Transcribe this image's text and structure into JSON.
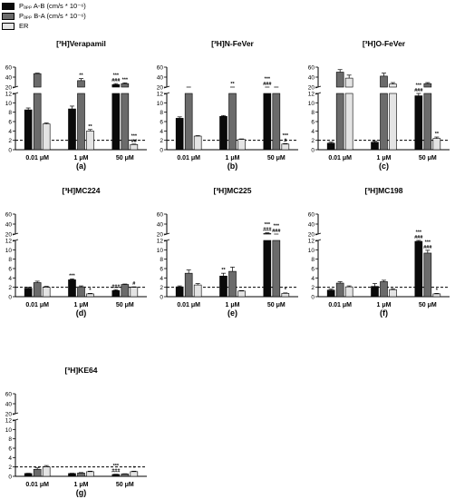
{
  "colors": {
    "ab": "#0a0a0a",
    "ba": "#6b6b6b",
    "er": "#e4e4e4"
  },
  "legend": [
    {
      "label": "Pₐₚₚ A-B (cm/s * 10⁻⁶)",
      "color": "#0a0a0a"
    },
    {
      "label": "Pₐₚₚ B-A (cm/s * 10⁻⁶)",
      "color": "#6b6b6b"
    },
    {
      "label": "ER",
      "color": "#e4e4e4"
    }
  ],
  "chart_data": [
    {
      "type": "bar",
      "title": "[³H]Verapamil",
      "letter": "(a)",
      "categories": [
        "0.01 μM",
        "1 μM",
        "50 μM"
      ],
      "series": [
        {
          "name": "A-B",
          "values": [
            8.5,
            8.7,
            25
          ],
          "errors": [
            0.4,
            0.6,
            2
          ]
        },
        {
          "name": "B-A",
          "values": [
            47,
            33,
            27
          ],
          "errors": [
            1,
            4,
            1.5
          ]
        },
        {
          "name": "ER",
          "values": [
            5.5,
            4.0,
            1.1
          ],
          "errors": [
            0.2,
            0.3,
            0.1
          ]
        }
      ],
      "reference_line": 2,
      "y_ticks_lower": [
        0,
        2,
        4,
        6,
        8,
        10,
        12
      ],
      "y_ticks_upper": [
        20,
        40,
        60
      ],
      "annotations": [
        {
          "cat": 1,
          "series": 1,
          "text": [
            "**"
          ]
        },
        {
          "cat": 1,
          "series": 2,
          "text": [
            "**"
          ]
        },
        {
          "cat": 2,
          "series": 0,
          "text": [
            "***",
            "###"
          ]
        },
        {
          "cat": 2,
          "series": 1,
          "text": [
            "***"
          ]
        },
        {
          "cat": 2,
          "series": 2,
          "text": [
            "***",
            "##"
          ]
        }
      ]
    },
    {
      "type": "bar",
      "title": "[³H]N-FeVer",
      "letter": "(b)",
      "categories": [
        "0.01 μM",
        "1 μM",
        "50 μM"
      ],
      "series": [
        {
          "name": "A-B",
          "values": [
            6.7,
            7.1,
            17
          ],
          "errors": [
            0.3,
            0.2,
            1
          ]
        },
        {
          "name": "B-A",
          "values": [
            19,
            16,
            17
          ],
          "errors": [
            1,
            1,
            1
          ]
        },
        {
          "name": "ER",
          "values": [
            2.9,
            2.2,
            1.2
          ],
          "errors": [
            0.1,
            0.1,
            0.1
          ]
        }
      ],
      "reference_line": 2,
      "y_ticks_lower": [
        0,
        2,
        4,
        6,
        8,
        10,
        12
      ],
      "y_ticks_upper": [
        20,
        40,
        60
      ],
      "annotations": [
        {
          "cat": 1,
          "series": 1,
          "text": [
            "**"
          ]
        },
        {
          "cat": 2,
          "series": 0,
          "text": [
            "***",
            "###"
          ]
        },
        {
          "cat": 2,
          "series": 2,
          "text": [
            "***",
            "#"
          ]
        }
      ]
    },
    {
      "type": "bar",
      "title": "[³H]O-FeVer",
      "letter": "(c)",
      "categories": [
        "0.01 μM",
        "1 μM",
        "50 μM"
      ],
      "series": [
        {
          "name": "A-B",
          "values": [
            1.4,
            1.6,
            11.5
          ],
          "errors": [
            0.2,
            0.2,
            0.5
          ]
        },
        {
          "name": "B-A",
          "values": [
            50,
            42,
            27
          ],
          "errors": [
            5,
            6,
            2
          ]
        },
        {
          "name": "ER",
          "values": [
            38,
            26,
            2.4
          ],
          "errors": [
            6,
            3,
            0.3
          ]
        }
      ],
      "reference_line": 2,
      "y_ticks_lower": [
        0,
        2,
        4,
        6,
        8,
        10,
        12
      ],
      "y_ticks_upper": [
        20,
        40,
        60
      ],
      "annotations": [
        {
          "cat": 2,
          "series": 0,
          "text": [
            "***",
            "###"
          ]
        },
        {
          "cat": 2,
          "series": 2,
          "text": [
            "**"
          ]
        }
      ]
    },
    {
      "type": "bar",
      "title": "[³H]MC224",
      "letter": "(d)",
      "categories": [
        "0.01 μM",
        "1 μM",
        "50 μM"
      ],
      "series": [
        {
          "name": "A-B",
          "values": [
            1.8,
            3.6,
            1.3
          ],
          "errors": [
            0.2,
            0.2,
            0.2
          ]
        },
        {
          "name": "B-A",
          "values": [
            3.0,
            2.1,
            2.6
          ],
          "errors": [
            0.3,
            0.2,
            0.1
          ]
        },
        {
          "name": "ER",
          "values": [
            2.0,
            0.6,
            2.0
          ],
          "errors": [
            0.2,
            0.1,
            0.1
          ]
        }
      ],
      "reference_line": 2,
      "y_ticks_lower": [
        0,
        2,
        4,
        6,
        8,
        10,
        12
      ],
      "y_ticks_upper": [
        20,
        40,
        60
      ],
      "annotations": [
        {
          "cat": 1,
          "series": 0,
          "text": [
            "***"
          ]
        },
        {
          "cat": 1,
          "series": 2,
          "text": [
            "*"
          ]
        },
        {
          "cat": 2,
          "series": 0,
          "text": [
            "###"
          ]
        },
        {
          "cat": 2,
          "series": 2,
          "text": [
            "#"
          ]
        }
      ]
    },
    {
      "type": "bar",
      "title": "[³H]MC225",
      "letter": "(e)",
      "categories": [
        "0.01 μM",
        "1 μM",
        "50 μM"
      ],
      "series": [
        {
          "name": "A-B",
          "values": [
            2.1,
            4.4,
            21
          ],
          "errors": [
            0.2,
            0.6,
            1.5
          ]
        },
        {
          "name": "B-A",
          "values": [
            5.0,
            5.4,
            15
          ],
          "errors": [
            0.7,
            0.9,
            1
          ]
        },
        {
          "name": "ER",
          "values": [
            2.5,
            1.2,
            0.7
          ],
          "errors": [
            0.3,
            0.1,
            0.1
          ]
        }
      ],
      "reference_line": 2,
      "y_ticks_lower": [
        0,
        2,
        4,
        6,
        8,
        10,
        12
      ],
      "y_ticks_upper": [
        20,
        40,
        60
      ],
      "annotations": [
        {
          "cat": 1,
          "series": 0,
          "text": [
            "**"
          ]
        },
        {
          "cat": 2,
          "series": 0,
          "text": [
            "***",
            "###"
          ]
        },
        {
          "cat": 2,
          "series": 1,
          "text": [
            "***",
            "###"
          ]
        },
        {
          "cat": 2,
          "series": 2,
          "text": [
            "*"
          ]
        }
      ]
    },
    {
      "type": "bar",
      "title": "[³H]MC198",
      "letter": "(f)",
      "categories": [
        "0.01 μM",
        "1 μM",
        "50 μM"
      ],
      "series": [
        {
          "name": "A-B",
          "values": [
            1.4,
            2.2,
            11.8
          ],
          "errors": [
            0.2,
            0.6,
            0.3
          ]
        },
        {
          "name": "B-A",
          "values": [
            2.9,
            3.2,
            9.3
          ],
          "errors": [
            0.3,
            0.3,
            0.6
          ]
        },
        {
          "name": "ER",
          "values": [
            2.1,
            1.5,
            0.6
          ],
          "errors": [
            0.2,
            0.2,
            0.1
          ]
        }
      ],
      "reference_line": 2,
      "y_ticks_lower": [
        0,
        2,
        4,
        6,
        8,
        10,
        12
      ],
      "y_ticks_upper": [
        20,
        40,
        60
      ],
      "annotations": [
        {
          "cat": 2,
          "series": 0,
          "text": [
            "***",
            "###"
          ]
        },
        {
          "cat": 2,
          "series": 1,
          "text": [
            "***",
            "###"
          ]
        },
        {
          "cat": 2,
          "series": 2,
          "text": [
            "*"
          ]
        }
      ]
    },
    {
      "type": "bar",
      "title": "[³H]KE64",
      "letter": "(g)",
      "categories": [
        "0.01 μM",
        "1 μM",
        "50 μM"
      ],
      "series": [
        {
          "name": "A-B",
          "values": [
            0.6,
            0.6,
            0.4
          ],
          "errors": [
            0.05,
            0.05,
            0.05
          ]
        },
        {
          "name": "B-A",
          "values": [
            1.5,
            0.7,
            0.5
          ],
          "errors": [
            0.3,
            0.1,
            0.05
          ]
        },
        {
          "name": "ER",
          "values": [
            2.0,
            1.0,
            1.0
          ],
          "errors": [
            0.3,
            0.1,
            0.1
          ]
        }
      ],
      "reference_line": 2,
      "y_ticks_lower": [
        0,
        2,
        4,
        6,
        8,
        10,
        12
      ],
      "y_ticks_upper": [
        20,
        40,
        60
      ],
      "annotations": [
        {
          "cat": 2,
          "series": 0,
          "text": [
            "***",
            "###"
          ]
        },
        {
          "cat": 2,
          "series": 2,
          "text": [
            "*"
          ]
        }
      ]
    }
  ]
}
